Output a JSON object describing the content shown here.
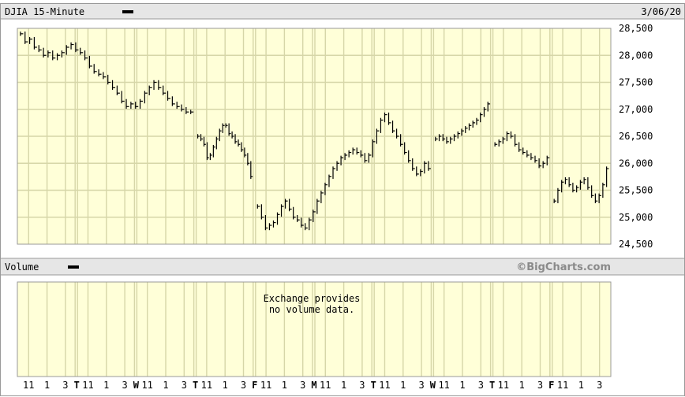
{
  "header": {
    "title": "DJIA 15-Minute",
    "date": "3/06/20"
  },
  "volume": {
    "title": "Volume",
    "message_line1": "Exchange provides",
    "message_line2": "no volume data.",
    "watermark": "©BigCharts.com"
  },
  "colors": {
    "plot_bg": "#ffffd8",
    "grid": "#d6d6a8",
    "header_bg": "#e6e6e6",
    "border": "#999999",
    "price": "#000000"
  },
  "chart_data": {
    "type": "line",
    "title": "DJIA 15-Minute",
    "interval": "15-Minute",
    "ylim": [
      24500,
      28500
    ],
    "y_ticks": [
      "28,500",
      "28,000",
      "27,500",
      "27,000",
      "26,500",
      "26,000",
      "25,500",
      "25,000",
      "24,500"
    ],
    "y_tick_values": [
      28500,
      28000,
      27500,
      27000,
      26500,
      26000,
      25500,
      25000,
      24500
    ],
    "grid": true,
    "x_ticks": [
      "11",
      "1",
      "3",
      "T",
      "11",
      "1",
      "3",
      "W",
      "11",
      "1",
      "3",
      "T",
      "11",
      "1",
      "3",
      "F",
      "11",
      "1",
      "3",
      "M",
      "11",
      "1",
      "3",
      "T",
      "11",
      "1",
      "3",
      "W",
      "11",
      "1",
      "3",
      "T",
      "11",
      "1",
      "3",
      "F",
      "11",
      "1",
      "3"
    ],
    "day_markers": [
      "T",
      "W",
      "T",
      "F",
      "M",
      "T",
      "W",
      "T",
      "F"
    ],
    "sessions": 10,
    "series": [
      {
        "values": [
          [
            28400,
            28250,
            28300,
            28150,
            28100,
            28000,
            28050,
            27950,
            28000,
            28050,
            28150,
            28200,
            28100,
            28050,
            27950,
            27800,
            27700,
            27650,
            27600,
            27500,
            27400,
            27300,
            27150,
            27050,
            27100,
            27050,
            27150,
            27300,
            27400,
            27500,
            27400,
            27300,
            27200,
            27100,
            27050,
            27000,
            26950,
            26950
          ],
          [
            26500,
            26450,
            26350,
            26100,
            26150,
            26300,
            26450,
            26600,
            26700,
            26700,
            26550,
            26500,
            26400,
            26350,
            26250,
            26150,
            26000,
            25750
          ],
          [
            25200,
            25000,
            24800,
            24850,
            24900,
            25050,
            25200,
            25300,
            25150,
            25000,
            24950,
            24850,
            24800,
            24950,
            25100,
            25300,
            25450,
            25600,
            25750,
            25900,
            26000,
            26100,
            26150,
            26200,
            26250,
            26200,
            26150,
            26050,
            26150,
            26400,
            26600,
            26800,
            26900,
            26750,
            26600,
            26500,
            26350,
            26200,
            26050,
            25900,
            25800,
            25850,
            26000,
            25900
          ],
          [
            26450,
            26500,
            26450,
            26400,
            26450,
            26500,
            26550,
            26600,
            26650,
            26700,
            26750,
            26800,
            26900,
            27000,
            27100
          ],
          [
            26350,
            26400,
            26450,
            26550,
            26500,
            26350,
            26250,
            26200,
            26150,
            26100,
            26050,
            25950,
            26000,
            26100
          ],
          [
            25300,
            25500,
            25650,
            25700,
            25600,
            25500,
            25550,
            25650,
            25700,
            25550,
            25400,
            25300,
            25400,
            25600,
            25900
          ]
        ]
      }
    ]
  }
}
